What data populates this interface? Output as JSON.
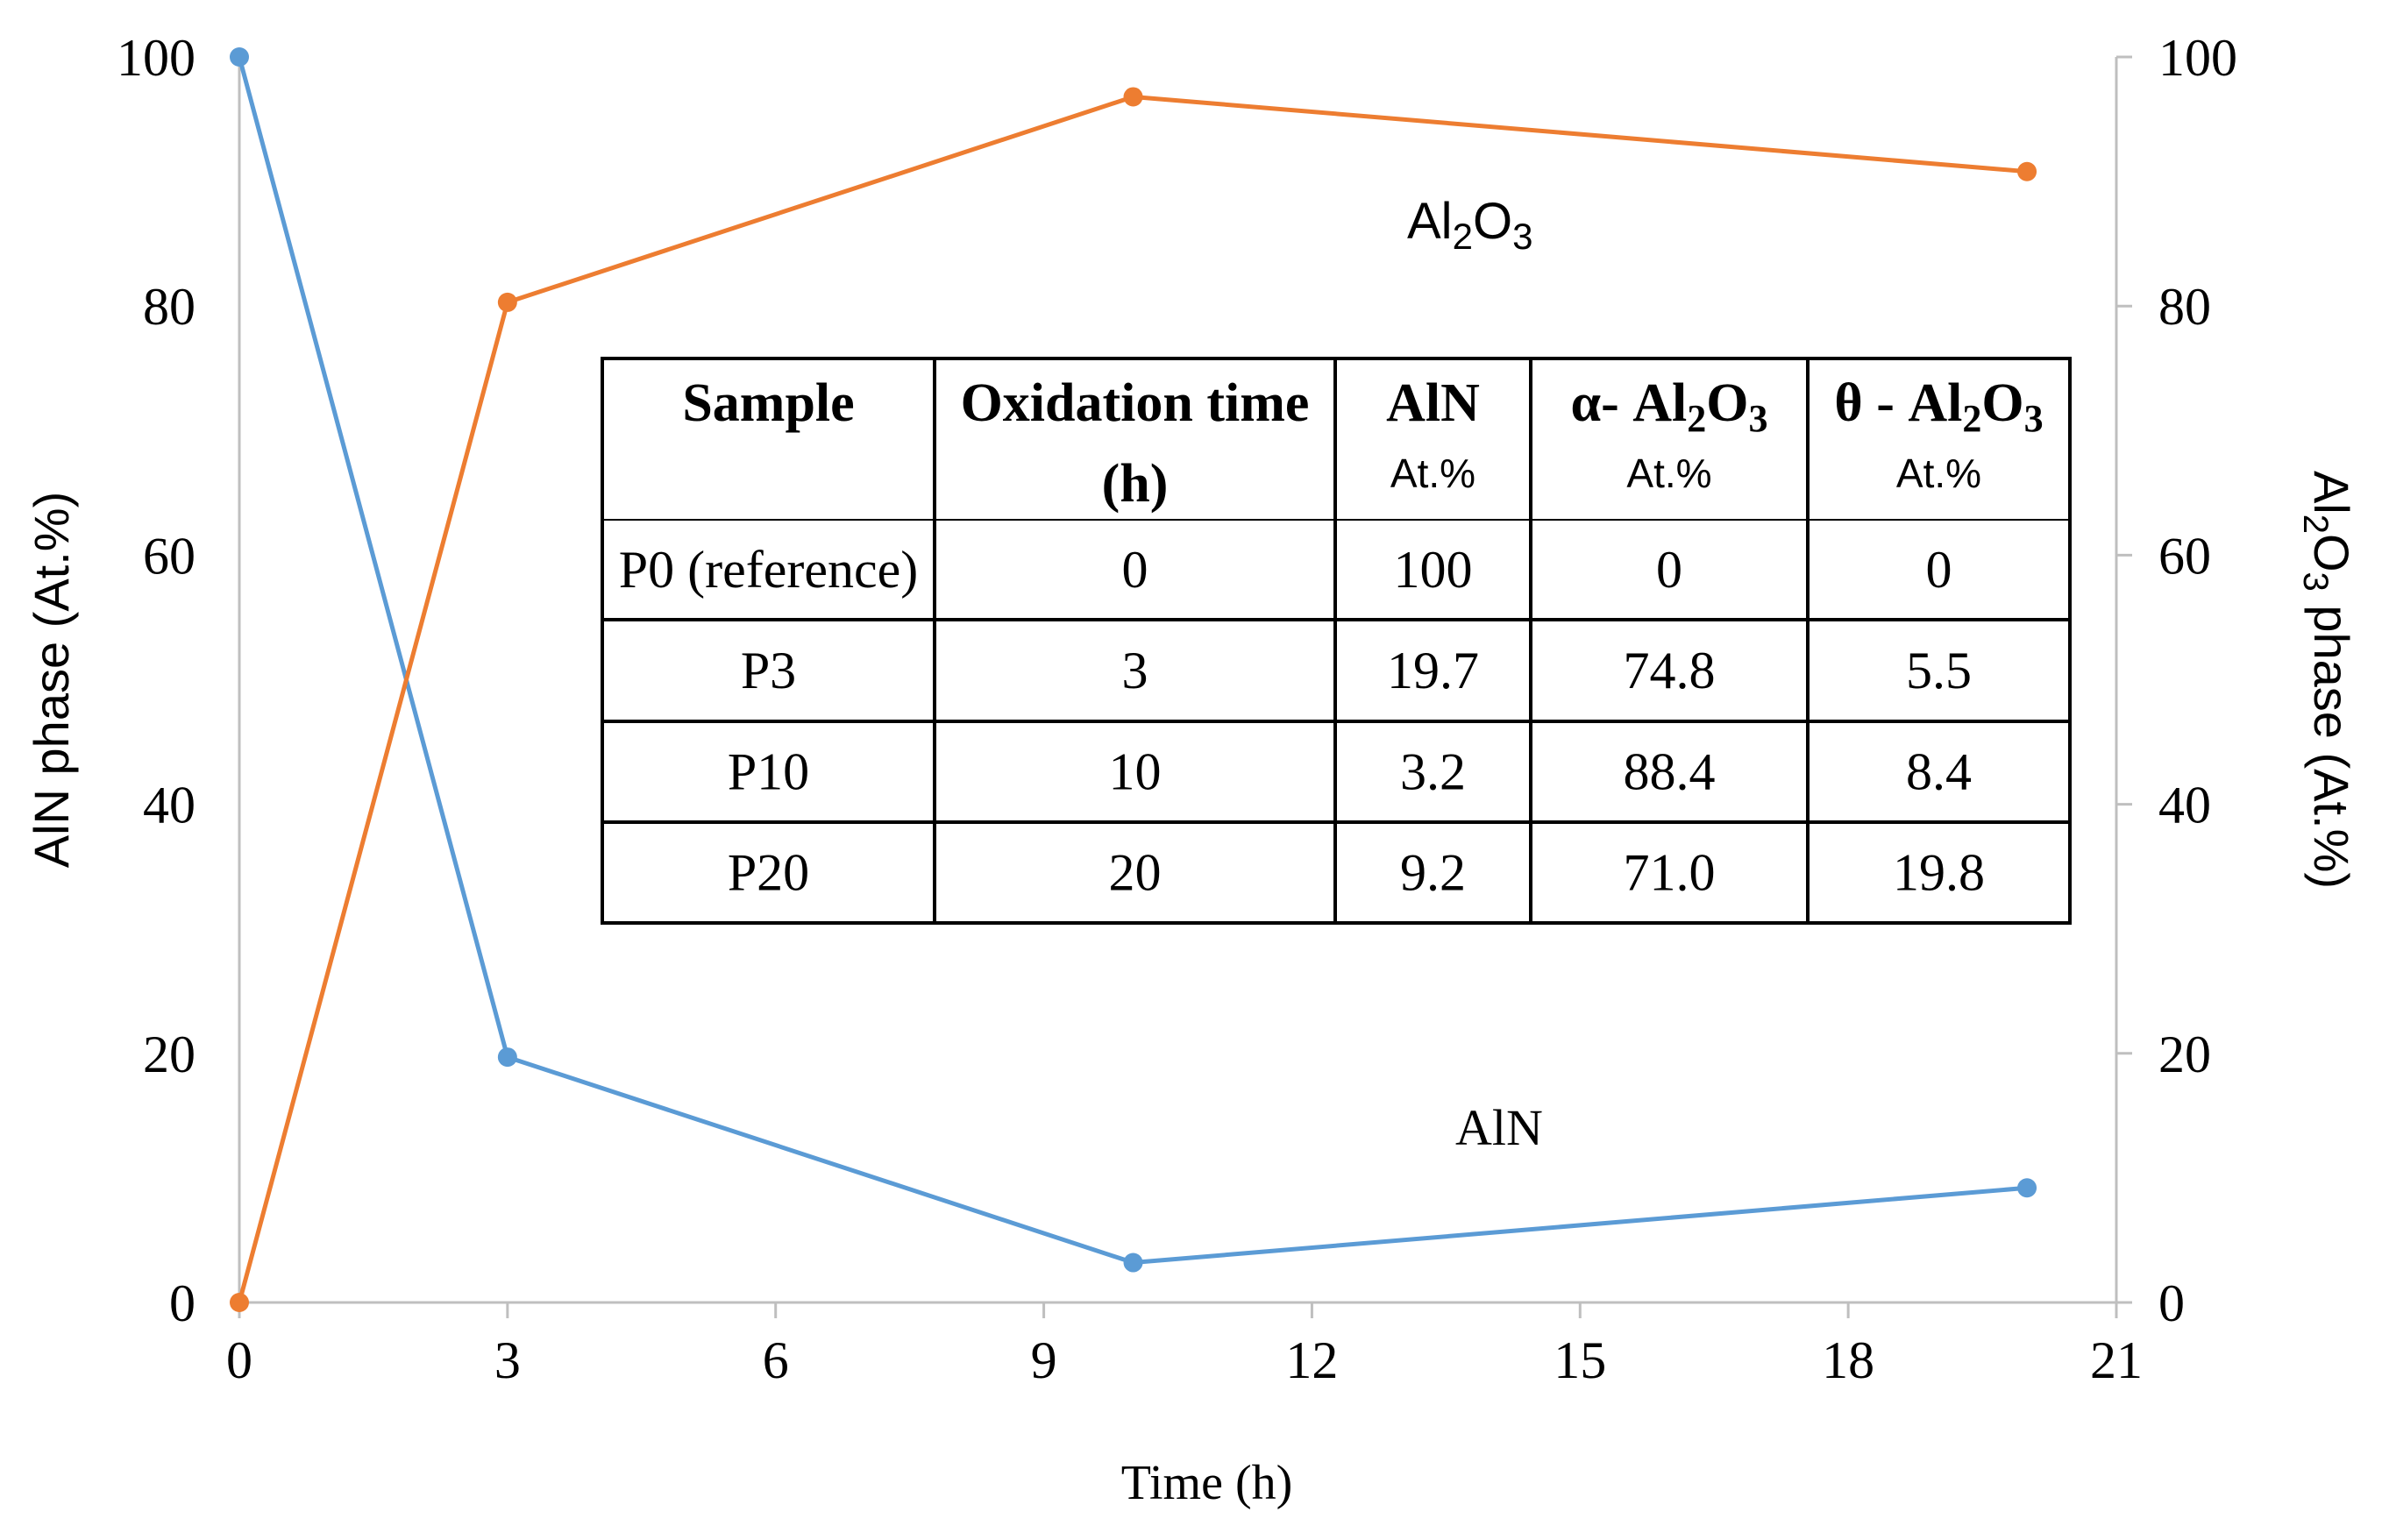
{
  "chart_data": {
    "type": "line",
    "x_axis": {
      "label": "Time (h)",
      "range": [
        0,
        21
      ],
      "ticks": [
        "0",
        "3",
        "6",
        "9",
        "12",
        "15",
        "18",
        "21"
      ]
    },
    "y_axis_left": {
      "label_parts": [
        "AlN phase (At.%)"
      ],
      "range": [
        0,
        100
      ],
      "ticks": [
        "0",
        "20",
        "40",
        "60",
        "80",
        "100"
      ]
    },
    "y_axis_right": {
      "label_parts": [
        "Al",
        "2",
        "O",
        "3",
        " phase (At.%)"
      ],
      "range": [
        0,
        100
      ],
      "ticks": [
        "0",
        "20",
        "40",
        "60",
        "80",
        "100"
      ]
    },
    "grid": false,
    "series": [
      {
        "name": "AlN",
        "axis": "left",
        "color": "#5B9BD5",
        "x": [
          0,
          3,
          10,
          20
        ],
        "y": [
          100,
          19.7,
          3.2,
          9.2
        ],
        "label_parts": [
          "AlN"
        ]
      },
      {
        "name": "Al2O3",
        "axis": "right",
        "color": "#ED7D31",
        "x": [
          0,
          3,
          10,
          20
        ],
        "y": [
          0,
          80.3,
          96.8,
          90.8
        ],
        "label_parts": [
          "Al",
          "2",
          "O",
          "3"
        ]
      }
    ],
    "table": {
      "headers": [
        {
          "main": [
            "Sample"
          ],
          "sub": ""
        },
        {
          "main": [
            "Oxidation time"
          ],
          "main2": "(h)",
          "sub": ""
        },
        {
          "main": [
            "AlN"
          ],
          "sub": "At.%"
        },
        {
          "main": [
            "α- Al",
            "2",
            "O",
            "3"
          ],
          "sub": "At.%"
        },
        {
          "main": [
            "θ - Al",
            "2",
            "O",
            "3"
          ],
          "sub": "At.%"
        }
      ],
      "rows": [
        [
          "P0 (reference)",
          "0",
          "100",
          "0",
          "0"
        ],
        [
          "P3",
          "3",
          "19.7",
          "74.8",
          "5.5"
        ],
        [
          "P10",
          "10",
          "3.2",
          "88.4",
          "8.4"
        ],
        [
          "P20",
          "20",
          "9.2",
          "71.0",
          "19.8"
        ]
      ]
    }
  }
}
